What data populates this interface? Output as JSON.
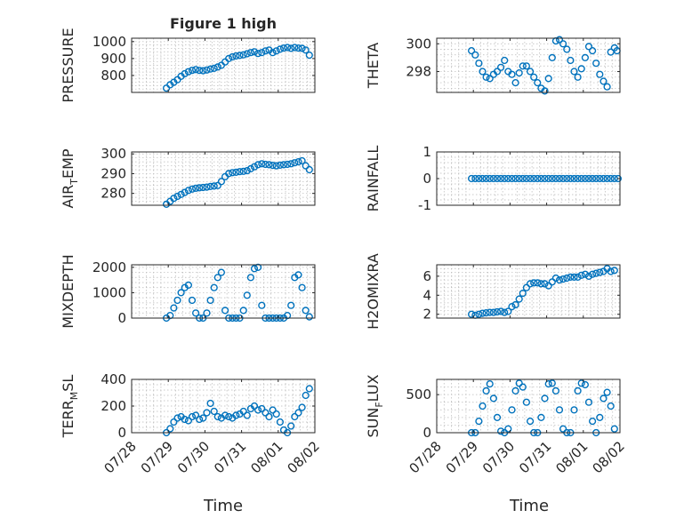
{
  "figure": {
    "title": "Figure 1 high",
    "xlabel": "Time",
    "xticks": [
      "07/28",
      "07/29",
      "07/30",
      "07/31",
      "08/01",
      "08/02"
    ],
    "marker_color": "#0072bd",
    "marker": "circle-open"
  },
  "chart_data": [
    {
      "type": "scatter",
      "id": "pressure",
      "ylabel_parts": [
        "PRESSURE"
      ],
      "xlim": [
        0,
        5
      ],
      "ylim": [
        700,
        1020
      ],
      "yticks": [
        800,
        900,
        1000
      ],
      "grid": true,
      "x": [
        0.95,
        1.05,
        1.15,
        1.25,
        1.35,
        1.45,
        1.55,
        1.65,
        1.75,
        1.85,
        1.95,
        2.05,
        2.15,
        2.25,
        2.35,
        2.45,
        2.55,
        2.65,
        2.75,
        2.85,
        2.95,
        3.05,
        3.15,
        3.25,
        3.35,
        3.45,
        3.55,
        3.65,
        3.75,
        3.85,
        3.95,
        4.05,
        4.15,
        4.25,
        4.35,
        4.45,
        4.55,
        4.65,
        4.75,
        4.85
      ],
      "y": [
        725,
        745,
        760,
        775,
        795,
        810,
        822,
        830,
        835,
        830,
        828,
        832,
        838,
        842,
        850,
        860,
        880,
        900,
        910,
        915,
        918,
        922,
        928,
        935,
        940,
        930,
        935,
        945,
        950,
        935,
        945,
        955,
        962,
        965,
        960,
        965,
        962,
        960,
        950,
        920
      ]
    },
    {
      "type": "scatter",
      "id": "theta",
      "ylabel_parts": [
        "THETA"
      ],
      "xlim": [
        0,
        5
      ],
      "ylim": [
        296.5,
        300.4
      ],
      "yticks": [
        298,
        300
      ],
      "grid": true,
      "x": [
        0.95,
        1.05,
        1.15,
        1.25,
        1.35,
        1.45,
        1.55,
        1.65,
        1.75,
        1.85,
        1.95,
        2.05,
        2.15,
        2.25,
        2.35,
        2.45,
        2.55,
        2.65,
        2.75,
        2.85,
        2.95,
        3.05,
        3.15,
        3.25,
        3.35,
        3.45,
        3.55,
        3.65,
        3.75,
        3.85,
        3.95,
        4.05,
        4.15,
        4.25,
        4.35,
        4.45,
        4.55,
        4.65,
        4.75,
        4.85,
        4.92
      ],
      "y": [
        299.5,
        299.2,
        298.6,
        298.0,
        297.6,
        297.5,
        297.8,
        298.0,
        298.3,
        298.8,
        298.0,
        297.8,
        297.2,
        297.9,
        298.4,
        298.4,
        298.0,
        297.6,
        297.2,
        296.8,
        296.6,
        297.5,
        299.0,
        300.2,
        300.3,
        300.0,
        299.6,
        298.8,
        298.0,
        297.6,
        298.2,
        299.0,
        299.8,
        299.5,
        298.6,
        297.8,
        297.3,
        296.9,
        299.4,
        299.7,
        299.5
      ]
    },
    {
      "type": "scatter",
      "id": "air_temp",
      "ylabel_parts": [
        "AIR",
        "T",
        "EMP"
      ],
      "xlim": [
        0,
        5
      ],
      "ylim": [
        274,
        301
      ],
      "yticks": [
        280,
        290,
        300
      ],
      "grid": true,
      "x": [
        0.95,
        1.05,
        1.15,
        1.25,
        1.35,
        1.45,
        1.55,
        1.65,
        1.75,
        1.85,
        1.95,
        2.05,
        2.15,
        2.25,
        2.35,
        2.45,
        2.55,
        2.65,
        2.75,
        2.85,
        2.95,
        3.05,
        3.15,
        3.25,
        3.35,
        3.45,
        3.55,
        3.65,
        3.75,
        3.85,
        3.95,
        4.05,
        4.15,
        4.25,
        4.35,
        4.45,
        4.55,
        4.65,
        4.75,
        4.85
      ],
      "y": [
        274.5,
        276,
        277.5,
        278.5,
        279.5,
        280.5,
        281.5,
        282.2,
        282.6,
        282.8,
        283,
        283.2,
        283.5,
        283.7,
        284,
        286,
        288.5,
        290,
        290.5,
        290.7,
        291,
        291.2,
        291.5,
        292.5,
        293.5,
        294.5,
        295,
        294.7,
        294.5,
        294.2,
        294,
        294.3,
        294.5,
        294.7,
        295,
        295.5,
        296,
        296.5,
        294,
        292
      ]
    },
    {
      "type": "scatter",
      "id": "rainfall",
      "ylabel_parts": [
        "RAINFALL"
      ],
      "xlim": [
        0,
        5
      ],
      "ylim": [
        -1,
        1
      ],
      "yticks": [
        -1,
        0,
        1
      ],
      "grid": true,
      "x": [
        0.95,
        1.05,
        1.15,
        1.25,
        1.35,
        1.45,
        1.55,
        1.65,
        1.75,
        1.85,
        1.95,
        2.05,
        2.15,
        2.25,
        2.35,
        2.45,
        2.55,
        2.65,
        2.75,
        2.85,
        2.95,
        3.05,
        3.15,
        3.25,
        3.35,
        3.45,
        3.55,
        3.65,
        3.75,
        3.85,
        3.95,
        4.05,
        4.15,
        4.25,
        4.35,
        4.45,
        4.55,
        4.65,
        4.75,
        4.85,
        4.95
      ],
      "y": [
        0,
        0,
        0,
        0,
        0,
        0,
        0,
        0,
        0,
        0,
        0,
        0,
        0,
        0,
        0,
        0,
        0,
        0,
        0,
        0,
        0,
        0,
        0,
        0,
        0,
        0,
        0,
        0,
        0,
        0,
        0,
        0,
        0,
        0,
        0,
        0,
        0,
        0,
        0,
        0,
        0
      ]
    },
    {
      "type": "scatter",
      "id": "mixdepth",
      "ylabel_parts": [
        "MIXDEPTH"
      ],
      "xlim": [
        0,
        5
      ],
      "ylim": [
        0,
        2100
      ],
      "yticks": [
        0,
        1000,
        2000
      ],
      "grid": true,
      "x": [
        0.95,
        1.05,
        1.15,
        1.25,
        1.35,
        1.45,
        1.55,
        1.65,
        1.75,
        1.85,
        1.95,
        2.05,
        2.15,
        2.25,
        2.35,
        2.45,
        2.55,
        2.65,
        2.75,
        2.85,
        2.95,
        3.05,
        3.15,
        3.25,
        3.35,
        3.45,
        3.55,
        3.65,
        3.75,
        3.85,
        3.95,
        4.05,
        4.15,
        4.25,
        4.35,
        4.45,
        4.55,
        4.65,
        4.75,
        4.85
      ],
      "y": [
        0,
        100,
        400,
        700,
        1000,
        1200,
        1300,
        700,
        200,
        0,
        0,
        200,
        700,
        1200,
        1600,
        1800,
        300,
        0,
        0,
        0,
        0,
        300,
        900,
        1600,
        1950,
        2000,
        500,
        0,
        0,
        0,
        0,
        0,
        0,
        100,
        500,
        1600,
        1700,
        1200,
        300,
        50
      ]
    },
    {
      "type": "scatter",
      "id": "h2omixra",
      "ylabel_parts": [
        "H2OMIXRA"
      ],
      "xlim": [
        0,
        5
      ],
      "ylim": [
        1.6,
        7.2
      ],
      "yticks": [
        2,
        4,
        6
      ],
      "grid": true,
      "x": [
        0.95,
        1.05,
        1.15,
        1.25,
        1.35,
        1.45,
        1.55,
        1.65,
        1.75,
        1.85,
        1.95,
        2.05,
        2.15,
        2.25,
        2.35,
        2.45,
        2.55,
        2.65,
        2.75,
        2.85,
        2.95,
        3.05,
        3.15,
        3.25,
        3.35,
        3.45,
        3.55,
        3.65,
        3.75,
        3.85,
        3.95,
        4.05,
        4.15,
        4.25,
        4.35,
        4.45,
        4.55,
        4.65,
        4.75,
        4.85
      ],
      "y": [
        2.0,
        1.9,
        2.0,
        2.1,
        2.15,
        2.2,
        2.2,
        2.25,
        2.3,
        2.2,
        2.3,
        2.8,
        3.0,
        3.6,
        4.2,
        4.8,
        5.2,
        5.3,
        5.3,
        5.2,
        5.2,
        5.0,
        5.4,
        5.8,
        5.6,
        5.7,
        5.8,
        5.9,
        5.9,
        5.9,
        6.1,
        6.2,
        6.0,
        6.2,
        6.3,
        6.4,
        6.5,
        6.8,
        6.5,
        6.6
      ]
    },
    {
      "type": "scatter",
      "id": "terr_msl",
      "ylabel_parts": [
        "TERR",
        "M",
        "SL"
      ],
      "xlim": [
        0,
        5
      ],
      "ylim": [
        0,
        400
      ],
      "yticks": [
        0,
        200,
        400
      ],
      "grid": true,
      "x": [
        0.95,
        1.05,
        1.15,
        1.25,
        1.35,
        1.45,
        1.55,
        1.65,
        1.75,
        1.85,
        1.95,
        2.05,
        2.15,
        2.25,
        2.35,
        2.45,
        2.55,
        2.65,
        2.75,
        2.85,
        2.95,
        3.05,
        3.15,
        3.25,
        3.35,
        3.45,
        3.55,
        3.65,
        3.75,
        3.85,
        3.95,
        4.05,
        4.15,
        4.25,
        4.35,
        4.45,
        4.55,
        4.65,
        4.75,
        4.85
      ],
      "y": [
        0,
        30,
        80,
        110,
        120,
        100,
        90,
        120,
        130,
        100,
        110,
        150,
        220,
        160,
        120,
        110,
        130,
        120,
        110,
        130,
        140,
        160,
        130,
        180,
        200,
        170,
        180,
        150,
        120,
        170,
        140,
        80,
        20,
        0,
        50,
        120,
        150,
        190,
        280,
        330
      ]
    },
    {
      "type": "scatter",
      "id": "sun_flux",
      "ylabel_parts": [
        "SUN",
        "F",
        "LUX"
      ],
      "xlim": [
        0,
        5
      ],
      "ylim": [
        0,
        700
      ],
      "yticks": [
        0,
        500
      ],
      "grid": true,
      "x": [
        0.95,
        1.05,
        1.15,
        1.25,
        1.35,
        1.45,
        1.55,
        1.65,
        1.75,
        1.85,
        1.95,
        2.05,
        2.15,
        2.25,
        2.35,
        2.45,
        2.55,
        2.65,
        2.75,
        2.85,
        2.95,
        3.05,
        3.15,
        3.25,
        3.35,
        3.45,
        3.55,
        3.65,
        3.75,
        3.85,
        3.95,
        4.05,
        4.15,
        4.25,
        4.35,
        4.45,
        4.55,
        4.65,
        4.75,
        4.85
      ],
      "y": [
        0,
        0,
        150,
        350,
        550,
        640,
        450,
        200,
        20,
        0,
        50,
        300,
        550,
        650,
        600,
        400,
        150,
        0,
        0,
        200,
        450,
        640,
        650,
        550,
        300,
        50,
        0,
        0,
        300,
        550,
        650,
        630,
        400,
        150,
        0,
        200,
        450,
        530,
        350,
        50
      ]
    }
  ]
}
